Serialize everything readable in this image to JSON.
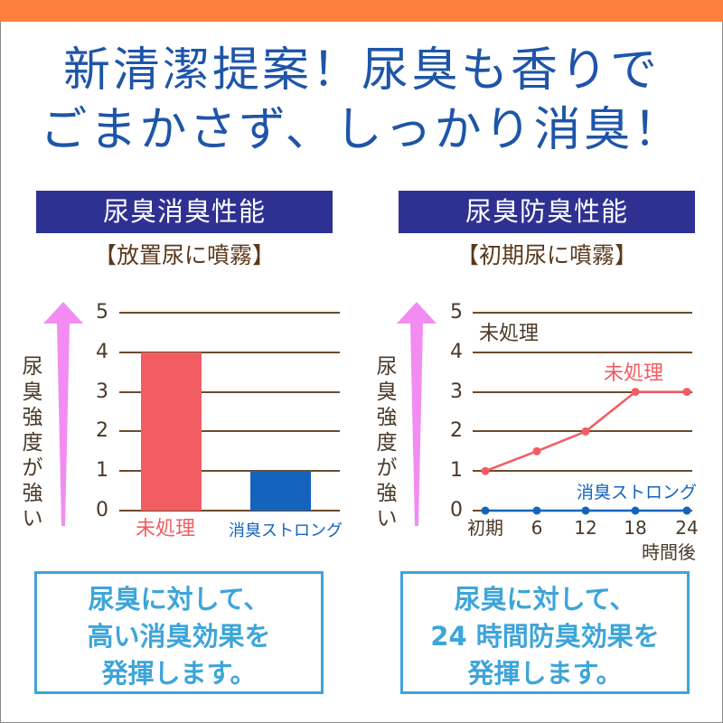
{
  "colors": {
    "top_bar": "#FF7F3F",
    "headline": "#1E55A8",
    "band": "#2E3192",
    "subtitle": "#5A3A1C",
    "axis_text": "#4A3A2A",
    "gridline": "#6B4B2E",
    "untreated": "#F25C63",
    "product": "#1464BE",
    "arrow": "#F28CF2",
    "box": "#3DA5D9"
  },
  "headline": {
    "line1": "新清潔提案！尿臭も香りで",
    "line2": "ごまかさず、しっかり消臭！"
  },
  "left_panel": {
    "band_title": "尿臭消臭性能",
    "subtitle": "【放置尿に噴霧】",
    "y_axis_label": [
      "尿",
      "臭",
      "強",
      "度",
      "が",
      "強",
      "い"
    ],
    "y_ticks": [
      "5",
      "4",
      "3",
      "2",
      "1",
      "0"
    ],
    "categories": [
      "未処理",
      "消臭ストロング"
    ],
    "summary": [
      "尿臭に対して、",
      "高い消臭効果を",
      "発揮します。"
    ]
  },
  "right_panel": {
    "band_title": "尿臭防臭性能",
    "subtitle": "【初期尿に噴霧】",
    "y_axis_label": [
      "尿",
      "臭",
      "強",
      "度",
      "が",
      "強",
      "い"
    ],
    "y_ticks": [
      "5",
      "4",
      "3",
      "2",
      "1",
      "0"
    ],
    "x_ticks": [
      "初期",
      "6",
      "12",
      "18",
      "24"
    ],
    "x_unit": "時間後",
    "label_top": "未処理",
    "series_labels": {
      "untreated": "未処理",
      "product": "消臭ストロング"
    },
    "summary": [
      "尿臭に対して、",
      "24 時間防臭効果を",
      "発揮します。"
    ]
  },
  "chart_data": [
    {
      "type": "bar",
      "title": "尿臭消臭性能 【放置尿に噴霧】",
      "categories": [
        "未処理",
        "消臭ストロング"
      ],
      "values": [
        4,
        1
      ],
      "colors": [
        "#F25C63",
        "#1464BE"
      ],
      "xlabel": "",
      "ylabel": "尿臭強度が強い",
      "ylim": [
        0,
        5
      ],
      "yticks": [
        0,
        1,
        2,
        3,
        4,
        5
      ],
      "grid": true,
      "legend": "none"
    },
    {
      "type": "line",
      "title": "尿臭防臭性能 【初期尿に噴霧】",
      "x": [
        "初期",
        "6",
        "12",
        "18",
        "24"
      ],
      "xlabel": "時間後",
      "ylabel": "尿臭強度が強い",
      "ylim": [
        0,
        5
      ],
      "yticks": [
        0,
        1,
        2,
        3,
        4,
        5
      ],
      "grid": true,
      "series": [
        {
          "name": "未処理",
          "values": [
            1,
            1.5,
            2,
            3,
            3
          ],
          "color": "#F25C63"
        },
        {
          "name": "消臭ストロング",
          "values": [
            0,
            0,
            0,
            0,
            0
          ],
          "color": "#1464BE"
        }
      ],
      "annotations": [
        "未処理"
      ],
      "legend": "inline labels"
    }
  ]
}
